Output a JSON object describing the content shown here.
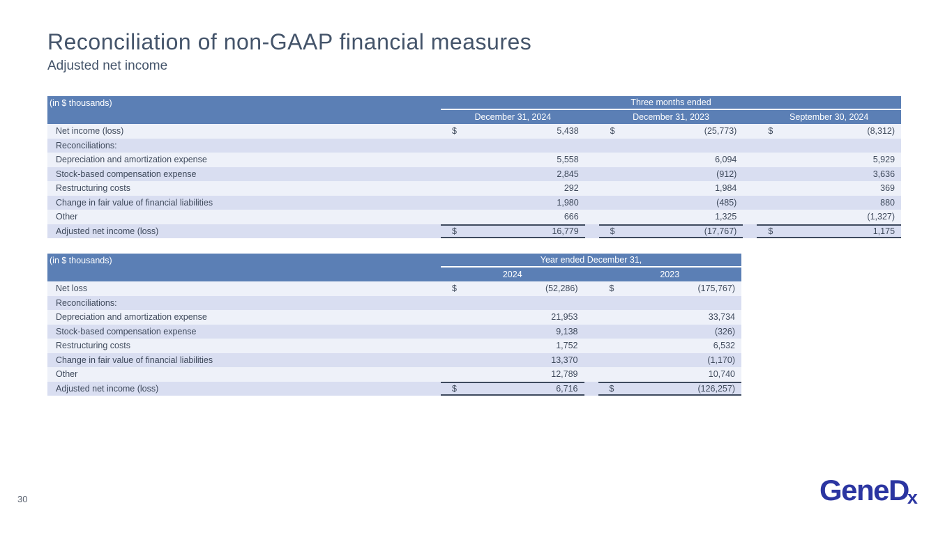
{
  "title": "Reconciliation of non-GAAP financial measures",
  "subtitle": "Adjusted net income",
  "page": {
    "number": "30"
  },
  "logo": {
    "gene": "Gene",
    "d": "D",
    "x": "x"
  },
  "colors": {
    "header_bg": "#5b7fb5",
    "row_light": "#eef1f9",
    "row_dark": "#d9def1",
    "table_text": "#3f4a5c",
    "title_text": "#44546a",
    "total_border": "#3e4a5e",
    "logo_blue": "#2b35a1"
  },
  "tables": [
    {
      "name": "three-months-ended",
      "units_label": "(in $ thousands)",
      "span_header": "Three months ended",
      "columns": [
        "December 31, 2024",
        "December 31, 2023",
        "September 30, 2024"
      ],
      "rows": [
        {
          "label": "Net income (loss)",
          "dollar": true,
          "values": [
            "5,438",
            "(25,773)",
            "(8,312)"
          ]
        },
        {
          "label": "Reconciliations:",
          "dollar": false,
          "values": [
            "",
            "",
            ""
          ]
        },
        {
          "label": "Depreciation and amortization expense",
          "dollar": false,
          "values": [
            "5,558",
            "6,094",
            "5,929"
          ]
        },
        {
          "label": "Stock-based compensation expense",
          "dollar": false,
          "values": [
            "2,845",
            "(912)",
            "3,636"
          ]
        },
        {
          "label": "Restructuring costs",
          "dollar": false,
          "values": [
            "292",
            "1,984",
            "369"
          ]
        },
        {
          "label": "Change in fair value of financial liabilities",
          "dollar": false,
          "values": [
            "1,980",
            "(485)",
            "880"
          ]
        },
        {
          "label": "Other",
          "dollar": false,
          "values": [
            "666",
            "1,325",
            "(1,327)"
          ]
        },
        {
          "label": "Adjusted net income (loss)",
          "dollar": true,
          "total": true,
          "values": [
            "16,779",
            "(17,767)",
            "1,175"
          ]
        }
      ]
    },
    {
      "name": "year-ended",
      "units_label": "(in $ thousands)",
      "span_header": "Year ended December 31,",
      "columns": [
        "2024",
        "2023"
      ],
      "rows": [
        {
          "label": "Net loss",
          "dollar": true,
          "values": [
            "(52,286)",
            "(175,767)"
          ]
        },
        {
          "label": "Reconciliations:",
          "dollar": false,
          "values": [
            "",
            ""
          ]
        },
        {
          "label": "Depreciation and amortization expense",
          "dollar": false,
          "values": [
            "21,953",
            "33,734"
          ]
        },
        {
          "label": "Stock-based compensation expense",
          "dollar": false,
          "values": [
            "9,138",
            "(326)"
          ]
        },
        {
          "label": "Restructuring costs",
          "dollar": false,
          "values": [
            "1,752",
            "6,532"
          ]
        },
        {
          "label": "Change in fair value of financial liabilities",
          "dollar": false,
          "values": [
            "13,370",
            "(1,170)"
          ]
        },
        {
          "label": "Other",
          "dollar": false,
          "values": [
            "12,789",
            "10,740"
          ]
        },
        {
          "label": "Adjusted net income (loss)",
          "dollar": true,
          "total": true,
          "values": [
            "6,716",
            "(126,257)"
          ]
        }
      ]
    }
  ]
}
